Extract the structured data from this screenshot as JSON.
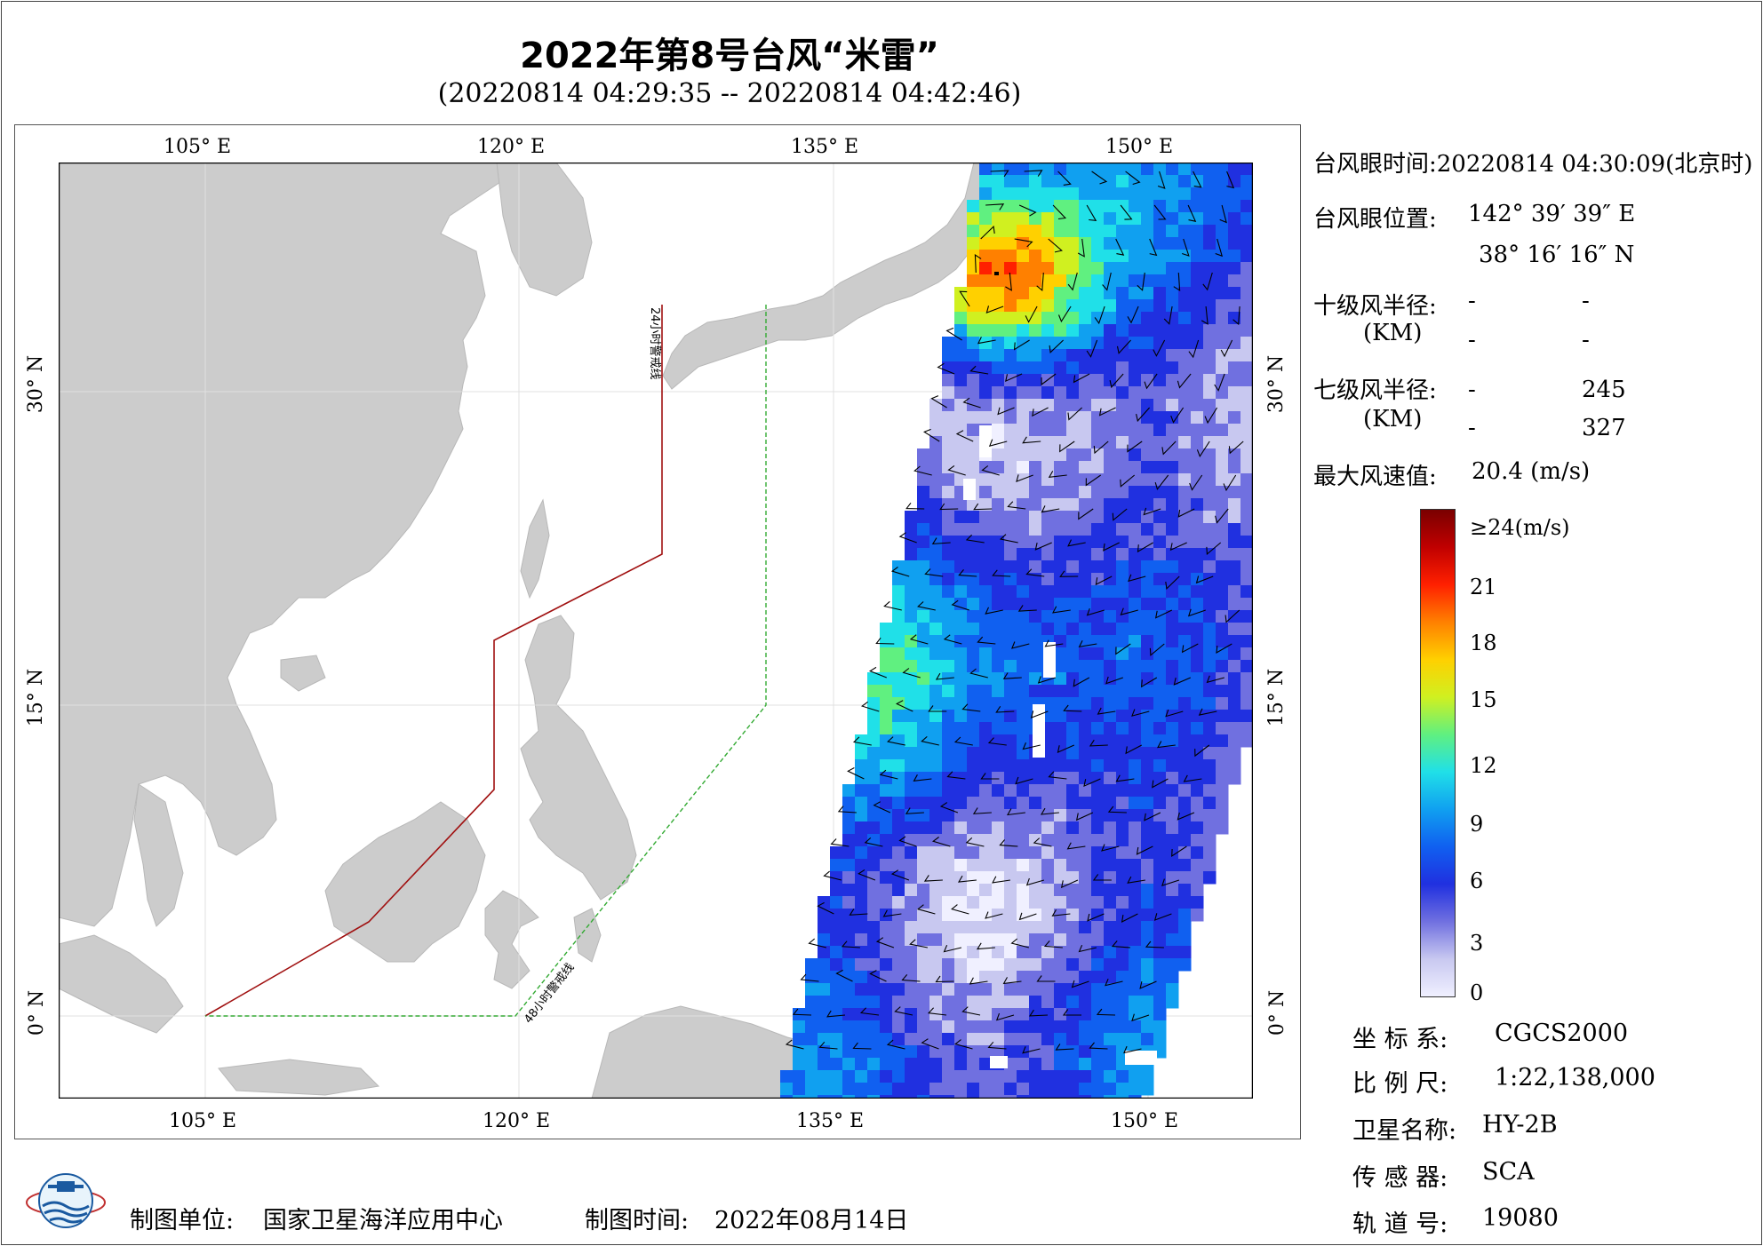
{
  "title": "2022年第8号台风“米雷”",
  "subtitle": "(20220814 04:29:35 -- 20220814 04:42:46)",
  "map": {
    "lon_labels": [
      "105° E",
      "120° E",
      "135° E",
      "150° E"
    ],
    "lat_labels": [
      "0° N",
      "15° N",
      "30° N"
    ],
    "line_24h_label": "24小时警戒线",
    "line_48h_label": "48小时警戒线",
    "colors": {
      "land": "#cccccc",
      "sea": "#ffffff",
      "line_24h": "#a01010",
      "line_48h": "#33aa33",
      "wind_barb": "#000000"
    }
  },
  "info": {
    "eye_time_label": "台风眼时间:",
    "eye_time_value": "20220814 04:30:09(北京时)",
    "eye_pos_label": "台风眼位置:",
    "eye_lon": "142° 39′ 39″ E",
    "eye_lat": "38° 16′ 16″ N",
    "r10_label": "十级风半径:",
    "r10_unit": "(KM)",
    "r10_values": [
      "-",
      "-",
      "-",
      "-"
    ],
    "r7_label": "七级风半径:",
    "r7_unit": "(KM)",
    "r7_values": [
      "-",
      "245",
      "-",
      "327"
    ],
    "max_wind_label": "最大风速值:",
    "max_wind_value": "20.4 (m/s)"
  },
  "colorbar": {
    "labels": [
      "≥24(m/s)",
      "21",
      "18",
      "15",
      "12",
      "9",
      "6",
      "3",
      "0"
    ],
    "stops": [
      "#f0f0ff",
      "#c8c8f0",
      "#7070e0",
      "#2030e0",
      "#1060f0",
      "#10a0f0",
      "#20e0e8",
      "#60f080",
      "#d0f020",
      "#ffd000",
      "#ff8000",
      "#ff2000",
      "#c00000",
      "#7a0000"
    ]
  },
  "meta": {
    "crs_label": "坐 标 系:",
    "crs_value": "CGCS2000",
    "scale_label": "比 例 尺:",
    "scale_value": "1:22,138,000",
    "satellite_label": "卫星名称:",
    "satellite_value": "HY-2B",
    "sensor_label": "传 感 器:",
    "sensor_value": "SCA",
    "orbit_label": "轨 道 号:",
    "orbit_value": "19080"
  },
  "footer": {
    "producer_label": "制图单位:",
    "producer_value": "国家卫星海洋应用中心",
    "date_label": "制图时间:",
    "date_value": "2022年08月14日"
  }
}
